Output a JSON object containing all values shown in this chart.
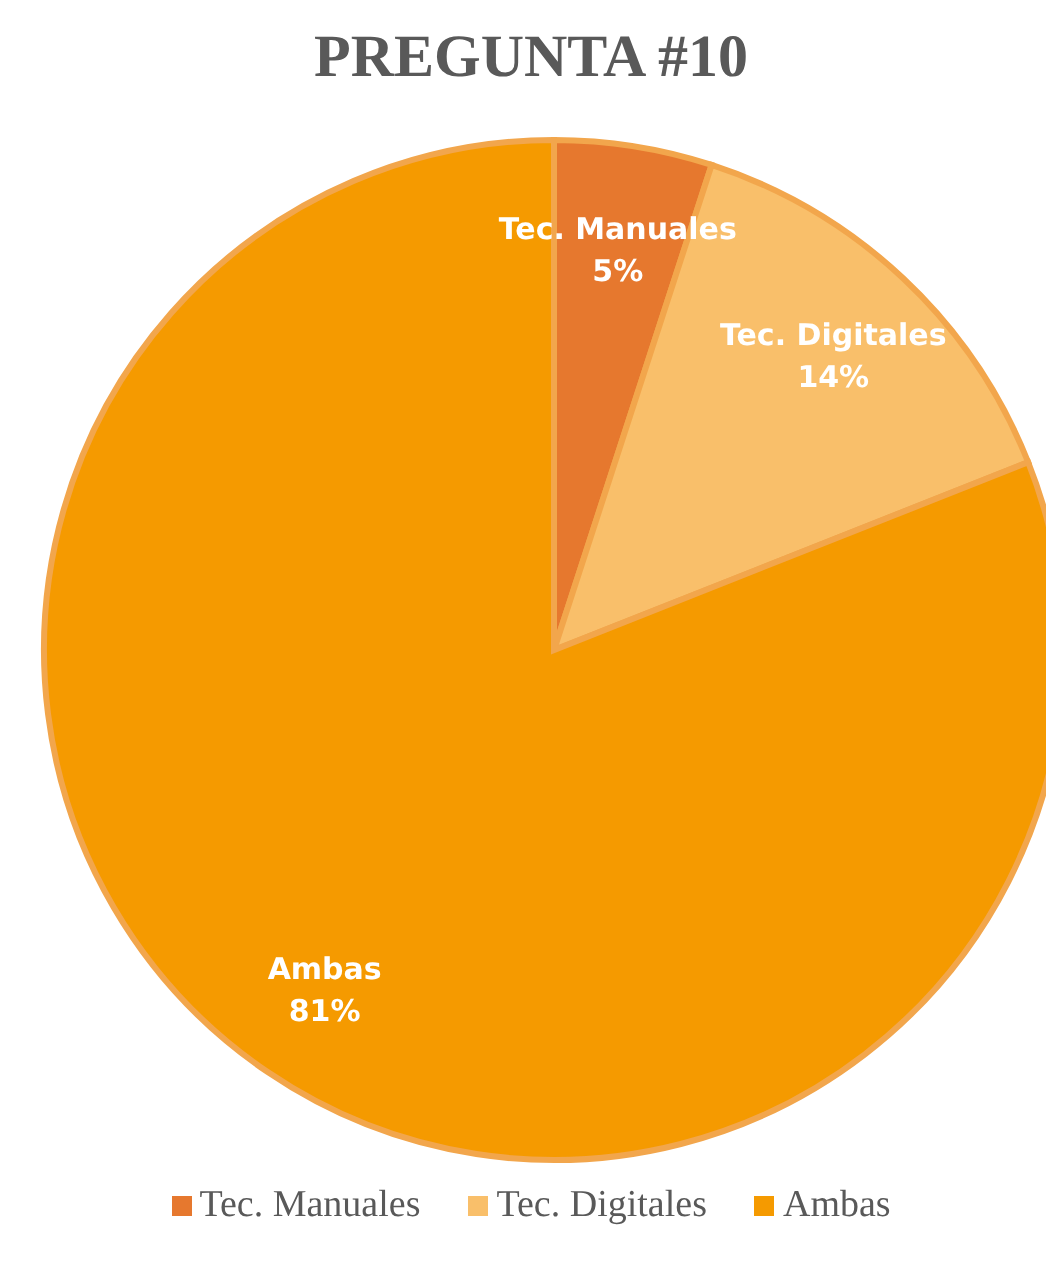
{
  "chart_data": {
    "type": "pie",
    "title": "PREGUNTA #10",
    "categories": [
      "Tec. Manuales",
      "Tec. Digitales",
      "Ambas"
    ],
    "values": [
      5,
      14,
      81
    ],
    "colors": [
      "#e6782e",
      "#f9bf6a",
      "#f59a00"
    ],
    "value_labels": [
      "5%",
      "14%",
      "81%"
    ],
    "legend": "bottom"
  }
}
